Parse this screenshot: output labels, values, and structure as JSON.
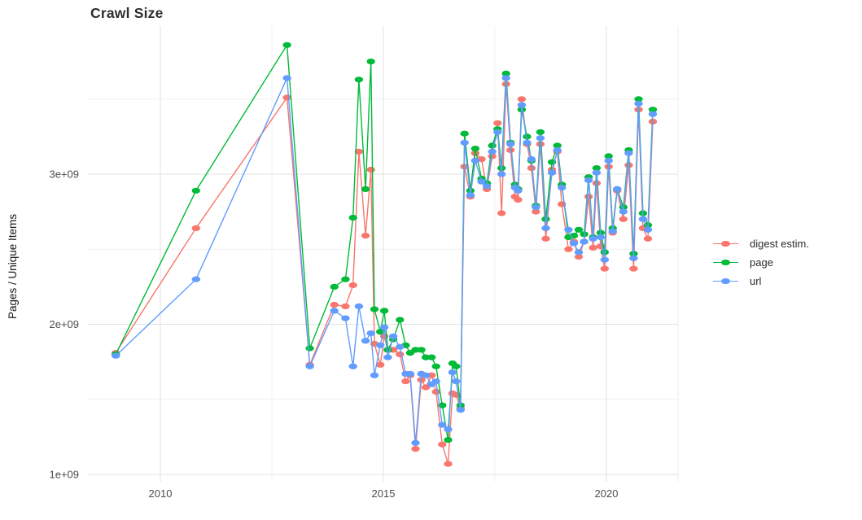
{
  "title": "Crawl Size",
  "ylabel": "Pages / Unique Items",
  "legend": {
    "items": [
      {
        "label": "digest estim.",
        "color": "#F8766D"
      },
      {
        "label": "page",
        "color": "#00BA38"
      },
      {
        "label": "url",
        "color": "#619CFF"
      }
    ]
  },
  "chart_data": {
    "type": "line",
    "title": "Crawl Size",
    "xlabel": "",
    "ylabel": "Pages / Unique Items",
    "values_unit": "billions (1e9) of pages / unique items",
    "xlim": [
      2008.4,
      2021.8
    ],
    "ylim": [
      0.95,
      3.99
    ],
    "grid": true,
    "legend_position": "right",
    "marker": "point",
    "x_ticks": [
      {
        "value": 2010,
        "label": "2010"
      },
      {
        "value": 2015,
        "label": "2015"
      },
      {
        "value": 2020,
        "label": "2020"
      }
    ],
    "x_minor_ticks": [
      2012.5,
      2017.5
    ],
    "y_ticks": [
      {
        "value": 1,
        "label": "1e+09"
      },
      {
        "value": 2,
        "label": "2e+09"
      },
      {
        "value": 3,
        "label": "3e+09"
      }
    ],
    "y_minor_ticks": [
      1.5,
      2.5,
      3.5
    ],
    "x": [
      2009.0,
      2010.8,
      2012.84,
      2013.35,
      2013.9,
      2014.15,
      2014.32,
      2014.45,
      2014.6,
      2014.72,
      2014.8,
      2014.93,
      2015.02,
      2015.1,
      2015.22,
      2015.37,
      2015.5,
      2015.6,
      2015.72,
      2015.85,
      2015.95,
      2016.08,
      2016.18,
      2016.32,
      2016.45,
      2016.55,
      2016.63,
      2016.73,
      2016.82,
      2016.95,
      2017.06,
      2017.2,
      2017.32,
      2017.44,
      2017.56,
      2017.65,
      2017.75,
      2017.85,
      2017.95,
      2018.02,
      2018.1,
      2018.22,
      2018.32,
      2018.42,
      2018.52,
      2018.64,
      2018.78,
      2018.9,
      2019.0,
      2019.15,
      2019.27,
      2019.38,
      2019.5,
      2019.6,
      2019.7,
      2019.78,
      2019.87,
      2019.96,
      2020.05,
      2020.14,
      2020.24,
      2020.38,
      2020.5,
      2020.61,
      2020.72,
      2020.82,
      2020.93,
      2021.04
    ],
    "series": [
      {
        "name": "digest estim.",
        "color": "#F8766D",
        "values": [
          1.81,
          2.64,
          3.51,
          1.73,
          2.13,
          2.12,
          2.26,
          3.15,
          2.59,
          3.03,
          1.87,
          1.73,
          1.92,
          1.83,
          1.83,
          1.8,
          1.62,
          1.66,
          1.17,
          1.63,
          1.58,
          1.66,
          1.55,
          1.2,
          1.07,
          1.54,
          1.53,
          1.44,
          3.05,
          2.85,
          3.14,
          3.1,
          2.9,
          3.12,
          3.34,
          2.74,
          3.6,
          3.16,
          2.85,
          2.83,
          3.5,
          3.2,
          3.04,
          2.75,
          3.2,
          2.57,
          3.03,
          3.15,
          2.8,
          2.5,
          2.55,
          2.45,
          2.55,
          2.85,
          2.51,
          2.94,
          2.52,
          2.37,
          3.05,
          2.61,
          2.89,
          2.7,
          3.06,
          2.37,
          3.43,
          2.64,
          2.57,
          3.35
        ]
      },
      {
        "name": "page",
        "color": "#00BA38",
        "values": [
          1.8,
          2.89,
          3.86,
          1.84,
          2.25,
          2.3,
          2.71,
          3.63,
          2.9,
          3.75,
          2.1,
          1.95,
          2.09,
          1.83,
          1.9,
          2.03,
          1.86,
          1.81,
          1.83,
          1.83,
          1.78,
          1.78,
          1.72,
          1.46,
          1.23,
          1.74,
          1.72,
          1.46,
          3.27,
          2.89,
          3.17,
          2.97,
          2.94,
          3.19,
          3.3,
          3.04,
          3.67,
          3.21,
          2.93,
          2.9,
          3.43,
          3.25,
          3.09,
          2.79,
          3.28,
          2.7,
          3.08,
          3.19,
          2.93,
          2.58,
          2.59,
          2.63,
          2.6,
          2.98,
          2.58,
          3.04,
          2.61,
          2.48,
          3.12,
          2.64,
          2.9,
          2.78,
          3.16,
          2.47,
          3.5,
          2.74,
          2.66,
          3.43
        ]
      },
      {
        "name": "url",
        "color": "#619CFF",
        "values": [
          1.79,
          2.3,
          3.64,
          1.72,
          2.09,
          2.04,
          1.72,
          2.12,
          1.89,
          1.94,
          1.66,
          1.86,
          1.98,
          1.78,
          1.92,
          1.85,
          1.67,
          1.67,
          1.21,
          1.67,
          1.66,
          1.6,
          1.62,
          1.33,
          1.3,
          1.68,
          1.62,
          1.43,
          3.21,
          2.86,
          3.09,
          2.95,
          2.92,
          3.15,
          3.28,
          3.0,
          3.64,
          3.2,
          2.91,
          2.89,
          3.46,
          3.21,
          3.1,
          2.78,
          3.24,
          2.64,
          3.01,
          3.16,
          2.91,
          2.63,
          2.54,
          2.48,
          2.55,
          2.96,
          2.57,
          3.01,
          2.58,
          2.43,
          3.09,
          2.62,
          2.9,
          2.75,
          3.14,
          2.44,
          3.47,
          2.7,
          2.63,
          3.4
        ]
      }
    ]
  }
}
